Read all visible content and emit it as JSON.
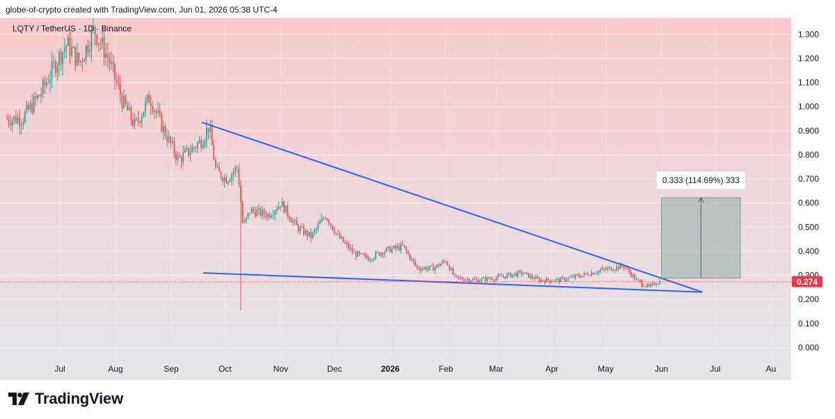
{
  "header": {
    "caption": "globe-of-crypto created with TradingView.com, Jun 01, 2026 05:38 UTC-4"
  },
  "branding": {
    "logo_text": "TradingView",
    "logo_icon": "tradingview-logo-icon"
  },
  "colors": {
    "bull": "#26a69a",
    "bear": "#ef5350",
    "trendline": "#2962ff",
    "price_label_bg": "#f23645",
    "bg_top": "#f7c9cc",
    "bg_bottom": "#e3e5ea"
  },
  "chart_data": {
    "type": "candlestick",
    "title": "LQTY / TetherUS · 1D · Binance",
    "y_ticks": [
      "1.300",
      "1.200",
      "1.100",
      "1.000",
      "0.900",
      "0.800",
      "0.700",
      "0.600",
      "0.500",
      "0.400",
      "0.300",
      "0.200",
      "0.100",
      "0.000"
    ],
    "y_tick_values": [
      1.3,
      1.2,
      1.1,
      1.0,
      0.9,
      0.8,
      0.7,
      0.6,
      0.5,
      0.4,
      0.3,
      0.2,
      0.1,
      0.0
    ],
    "ylim": [
      -0.05,
      1.33
    ],
    "x_ticks": [
      "Jul",
      "Aug",
      "Sep",
      "Oct",
      "Nov",
      "Dec",
      "2026",
      "Feb",
      "Mar",
      "Apr",
      "May",
      "Jun",
      "Jul",
      "Au"
    ],
    "x_tick_bold": [
      false,
      false,
      false,
      false,
      false,
      false,
      true,
      false,
      false,
      false,
      false,
      false,
      false,
      false
    ],
    "last_price": "0.274",
    "last_price_value": 0.274,
    "price_series": [
      [
        "2025-06-10",
        0.95
      ],
      [
        "2025-06-20",
        1.05
      ],
      [
        "2025-06-30",
        1.2
      ],
      [
        "2025-07-05",
        1.26
      ],
      [
        "2025-07-12",
        1.18
      ],
      [
        "2025-07-20",
        1.32
      ],
      [
        "2025-07-28",
        1.2
      ],
      [
        "2025-08-05",
        1.02
      ],
      [
        "2025-08-12",
        0.92
      ],
      [
        "2025-08-20",
        1.04
      ],
      [
        "2025-08-28",
        0.9
      ],
      [
        "2025-09-05",
        0.78
      ],
      [
        "2025-09-12",
        0.82
      ],
      [
        "2025-09-18",
        0.86
      ],
      [
        "2025-09-22",
        0.92
      ],
      [
        "2025-09-26",
        0.73
      ],
      [
        "2025-10-02",
        0.7
      ],
      [
        "2025-10-08",
        0.75
      ],
      [
        "2025-10-11",
        0.5
      ],
      [
        "2025-10-15",
        0.57
      ],
      [
        "2025-10-25",
        0.55
      ],
      [
        "2025-11-01",
        0.6
      ],
      [
        "2025-11-10",
        0.5
      ],
      [
        "2025-11-18",
        0.46
      ],
      [
        "2025-11-26",
        0.55
      ],
      [
        "2025-12-03",
        0.46
      ],
      [
        "2025-12-12",
        0.39
      ],
      [
        "2025-12-20",
        0.37
      ],
      [
        "2025-12-28",
        0.4
      ],
      [
        "2026-01-08",
        0.42
      ],
      [
        "2026-01-16",
        0.33
      ],
      [
        "2026-01-25",
        0.33
      ],
      [
        "2026-02-01",
        0.36
      ],
      [
        "2026-02-06",
        0.29
      ],
      [
        "2026-02-18",
        0.28
      ],
      [
        "2026-03-01",
        0.29
      ],
      [
        "2026-03-15",
        0.31
      ],
      [
        "2026-03-25",
        0.28
      ],
      [
        "2026-04-05",
        0.28
      ],
      [
        "2026-04-18",
        0.3
      ],
      [
        "2026-04-28",
        0.32
      ],
      [
        "2026-05-05",
        0.33
      ],
      [
        "2026-05-11",
        0.34
      ],
      [
        "2026-05-18",
        0.28
      ],
      [
        "2026-05-25",
        0.25
      ],
      [
        "2026-05-29",
        0.27
      ],
      [
        "2026-06-01",
        0.274
      ]
    ],
    "wick_low": {
      "date": "2025-10-10",
      "low": 0.155
    },
    "trendlines": [
      {
        "name": "upper",
        "from": [
          "2025-09-18",
          0.935
        ],
        "to": [
          "2026-06-24",
          0.23
        ]
      },
      {
        "name": "lower",
        "from": [
          "2025-09-19",
          0.31
        ],
        "to": [
          "2026-06-24",
          0.23
        ]
      }
    ],
    "measure_box": {
      "from_date": "2026-06-01",
      "to_date": "2026-07-15",
      "low": 0.288,
      "high": 0.622,
      "label": "0.333 (114.69%) 333"
    },
    "grid": true
  }
}
